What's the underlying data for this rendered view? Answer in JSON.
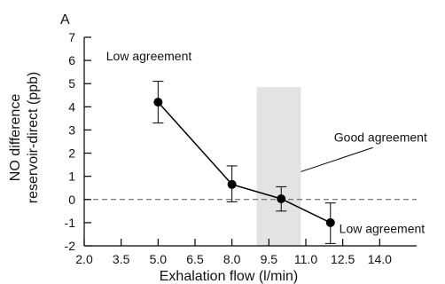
{
  "chart_data": {
    "type": "scatter",
    "panel_label": "A",
    "title": "",
    "xlabel": "Exhalation flow (l/min)",
    "ylabel_lines": [
      "NO difference",
      "reservoir-direct (ppb)"
    ],
    "xlim": [
      2.0,
      15.5
    ],
    "ylim": [
      -2,
      7
    ],
    "xticks": [
      2.0,
      3.5,
      5.0,
      6.5,
      8.0,
      9.5,
      11.0,
      12.5,
      14.0
    ],
    "xtick_labels": [
      "2.0",
      "3.5",
      "5.0",
      "6.5",
      "8.0",
      "9.5",
      "11.0",
      "12.5",
      "14.0"
    ],
    "yticks": [
      -2,
      -1,
      0,
      1,
      2,
      3,
      4,
      5,
      6,
      7
    ],
    "ytick_labels": [
      "-2",
      "-1",
      "0",
      "1",
      "2",
      "3",
      "4",
      "5",
      "6",
      "7"
    ],
    "series": [
      {
        "x": [
          5.0,
          8.0,
          10.0,
          12.0
        ],
        "y": [
          4.2,
          0.65,
          0.03,
          -1.0
        ],
        "err_low": [
          3.3,
          -0.1,
          -0.5,
          -1.9
        ],
        "err_high": [
          5.1,
          1.45,
          0.55,
          -0.15
        ]
      }
    ],
    "reference_line_y": 0,
    "shaded_band": {
      "x": [
        9.0,
        10.8
      ],
      "y_top": 4.85
    },
    "annotations": [
      {
        "text": "Low agreement",
        "x": 3.0,
        "y": 6.2
      },
      {
        "text": "Good agreement",
        "x": 12.0,
        "y": 2.7,
        "pointer_to": {
          "x": 10.8,
          "y": 1.2
        }
      },
      {
        "text": "Low agreement",
        "x": 12.5,
        "y": -1.45
      }
    ],
    "grid": false,
    "legend": "none"
  }
}
